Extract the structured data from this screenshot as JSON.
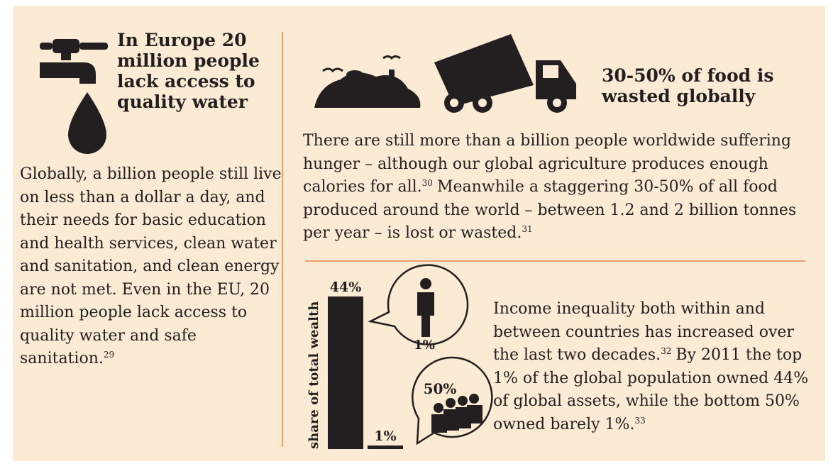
{
  "water": {
    "title": "In Europe 20 million people lack access to quality water",
    "body": "Globally, a billion people still live on less than a dollar a day, and their needs for basic education and health services, clean water and sanitation, and clean energy are not met. Even in the EU, 20 million people lack access to quality water and safe sanitation.",
    "note": "29"
  },
  "food": {
    "title": "30-50% of food is wasted globally",
    "body": [
      {
        "text": "There are still more than a billion people worldwide suffering hunger – although our global agriculture produces enough calories for all.",
        "note": "30"
      },
      {
        "text": "Meanwhile a staggering 30-50% of all food produced around the world – between 1.2 and 2 billion tonnes per year – is lost or wasted.",
        "note": "31"
      }
    ]
  },
  "income": {
    "body": [
      {
        "text": "Income inequality both within and between countries has increased over the last two decades.",
        "note": "32"
      },
      {
        "text": "By 2011 the top 1% of the global population owned 44% of global assets, while the bottom 50% owned barely 1%.",
        "note": "33"
      }
    ]
  },
  "chart": {
    "axis_label": "share of total wealth",
    "values": [
      44,
      1
    ],
    "value_labels": [
      "44%",
      "1%"
    ],
    "callouts": [
      "1%",
      "50%"
    ],
    "color": "#231f20"
  }
}
